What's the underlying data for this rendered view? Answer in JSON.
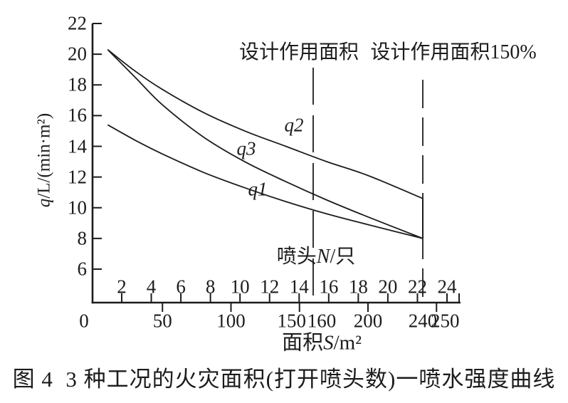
{
  "figure": {
    "caption": "图 4  3 种工况的火灾面积(打开喷头数)一喷水强度曲线"
  },
  "chart_data": {
    "type": "line",
    "grid": false,
    "background": "#ffffff",
    "line_color": "#1c1c1c",
    "legend_position": "inline-labels",
    "y_axis": {
      "label_symbol": "q",
      "label_suffix": "/L/(min·m²)",
      "min": 6,
      "max": 22,
      "tick_step": 2,
      "ticks": [
        22,
        20,
        18,
        16,
        14,
        12,
        10,
        8,
        6
      ]
    },
    "x_axis_bottom": {
      "label_prefix": "面积",
      "label_symbol": "S",
      "label_suffix": "/m²",
      "min": 0,
      "max": 250,
      "ticks": [
        0,
        50,
        100,
        150,
        160,
        200,
        240,
        250
      ]
    },
    "x_axis_top": {
      "label_prefix": "喷头",
      "label_symbol": "N",
      "label_suffix": "/只",
      "ticks": [
        2,
        4,
        6,
        8,
        10,
        12,
        14,
        16,
        18,
        20,
        22,
        24
      ]
    },
    "reference_lines": [
      {
        "s": 160,
        "label": "设计作用面积"
      },
      {
        "s": 240,
        "label": "设计作用面积150%"
      }
    ],
    "series": [
      {
        "name": "q1",
        "points": [
          [
            10,
            15.4
          ],
          [
            30,
            14.4
          ],
          [
            50,
            13.5
          ],
          [
            80,
            12.3
          ],
          [
            110,
            11.3
          ],
          [
            140,
            10.4
          ],
          [
            170,
            9.6
          ],
          [
            200,
            8.9
          ],
          [
            240,
            8.0
          ]
        ]
      },
      {
        "name": "q2",
        "points": [
          [
            10,
            20.3
          ],
          [
            30,
            18.9
          ],
          [
            50,
            17.7
          ],
          [
            80,
            16.2
          ],
          [
            110,
            15.0
          ],
          [
            140,
            14.0
          ],
          [
            170,
            13.0
          ],
          [
            200,
            12.1
          ],
          [
            240,
            10.6
          ]
        ]
      },
      {
        "name": "q3",
        "points": [
          [
            10,
            20.3
          ],
          [
            30,
            18.5
          ],
          [
            50,
            16.7
          ],
          [
            80,
            14.6
          ],
          [
            110,
            13.0
          ],
          [
            140,
            11.7
          ],
          [
            170,
            10.5
          ],
          [
            200,
            9.4
          ],
          [
            240,
            8.0
          ]
        ]
      }
    ]
  }
}
